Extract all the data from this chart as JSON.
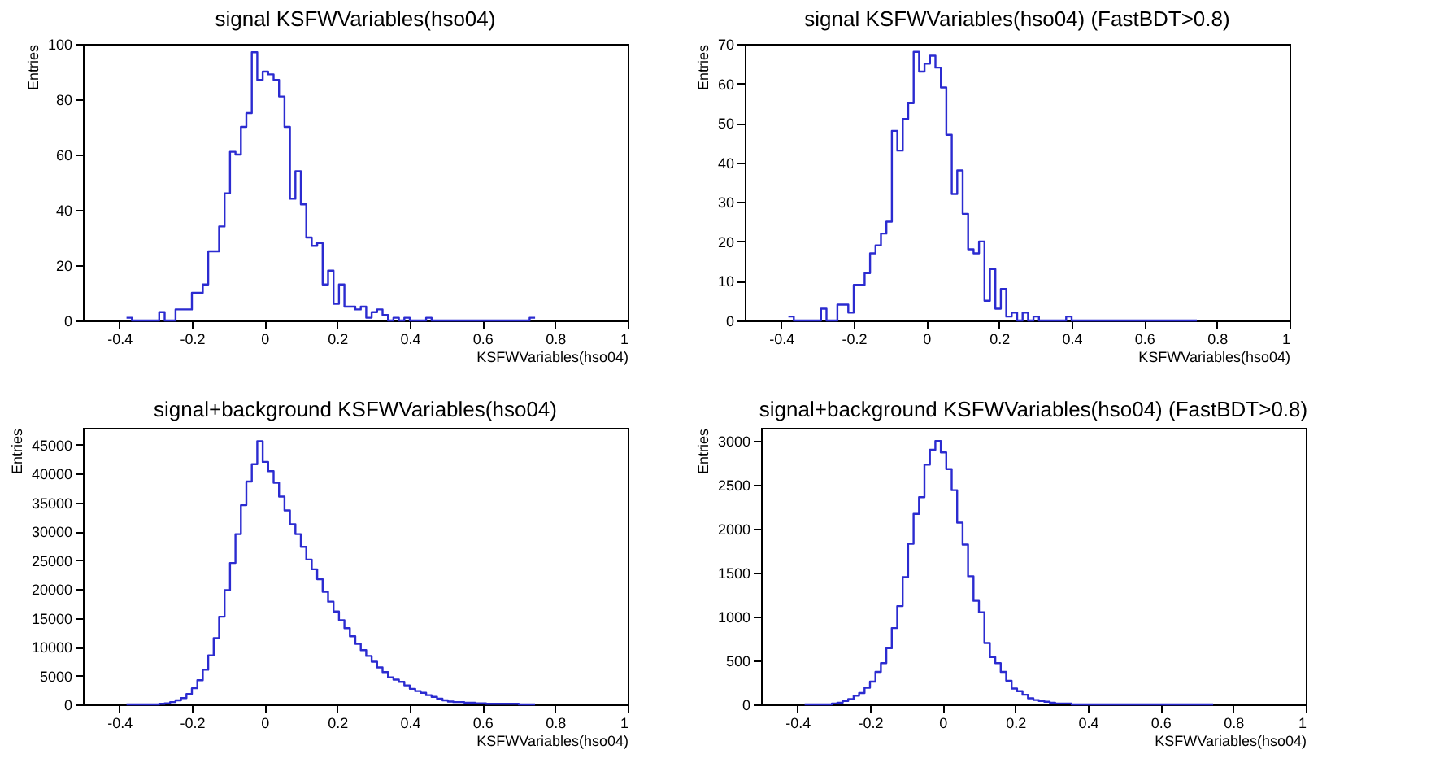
{
  "chart_data": [
    {
      "type": "histogram",
      "title": "signal KSFWVariables(hso04)",
      "xlabel": "KSFWVariables(hso04)",
      "ylabel": "Entries",
      "color": "#2b2bd0",
      "grid": false,
      "legend": false,
      "xlim": [
        -0.5,
        1
      ],
      "xticks": [
        -0.4,
        -0.2,
        0,
        0.2,
        0.4,
        0.6,
        0.8,
        1
      ],
      "ylim": [
        0,
        100
      ],
      "yticks": [
        0,
        20,
        40,
        60,
        80,
        100
      ],
      "bins": [
        -0.38,
        -0.365,
        -0.35,
        -0.335,
        -0.32,
        -0.305,
        -0.29,
        -0.275,
        -0.26,
        -0.245,
        -0.23,
        -0.215,
        -0.2,
        -0.185,
        -0.17,
        -0.155,
        -0.14,
        -0.125,
        -0.11,
        -0.095,
        -0.08,
        -0.065,
        -0.05,
        -0.035,
        -0.02,
        -0.005,
        0.01,
        0.025,
        0.04,
        0.055,
        0.07,
        0.085,
        0.1,
        0.115,
        0.13,
        0.145,
        0.16,
        0.175,
        0.19,
        0.205,
        0.22,
        0.235,
        0.25,
        0.265,
        0.28,
        0.295,
        0.31,
        0.325,
        0.34,
        0.355,
        0.37,
        0.385,
        0.4,
        0.415,
        0.43,
        0.445,
        0.46,
        0.475,
        0.49,
        0.505,
        0.52,
        0.535,
        0.55,
        0.565,
        0.58,
        0.595,
        0.61,
        0.625,
        0.64,
        0.655,
        0.67,
        0.685,
        0.7,
        0.715,
        0.73,
        0.745
      ],
      "values": [
        1,
        0,
        0,
        0,
        0,
        0,
        3,
        0,
        0,
        4,
        4,
        4,
        10,
        10,
        13,
        25,
        25,
        34,
        46,
        61,
        60,
        70,
        75,
        97,
        87,
        90,
        89,
        87,
        81,
        70,
        44,
        54,
        42,
        30,
        27,
        28,
        13,
        18,
        6,
        13,
        5,
        5,
        4,
        5,
        1,
        3,
        4,
        2,
        0,
        1,
        0,
        1,
        0,
        0,
        0,
        1,
        0,
        0,
        0,
        0,
        0,
        0,
        0,
        0,
        0,
        0,
        0,
        0,
        0,
        0,
        0,
        0,
        0,
        0,
        1
      ]
    },
    {
      "type": "histogram",
      "title": "signal KSFWVariables(hso04) (FastBDT>0.8)",
      "xlabel": "KSFWVariables(hso04)",
      "ylabel": "Entries",
      "color": "#2b2bd0",
      "grid": false,
      "legend": false,
      "xlim": [
        -0.5,
        1
      ],
      "xticks": [
        -0.4,
        -0.2,
        0,
        0.2,
        0.4,
        0.6,
        0.8,
        1
      ],
      "ylim": [
        0,
        70
      ],
      "yticks": [
        0,
        10,
        20,
        30,
        40,
        50,
        60,
        70
      ],
      "bins": [
        -0.38,
        -0.365,
        -0.35,
        -0.335,
        -0.32,
        -0.305,
        -0.29,
        -0.275,
        -0.26,
        -0.245,
        -0.23,
        -0.215,
        -0.2,
        -0.185,
        -0.17,
        -0.155,
        -0.14,
        -0.125,
        -0.11,
        -0.095,
        -0.08,
        -0.065,
        -0.05,
        -0.035,
        -0.02,
        -0.005,
        0.01,
        0.025,
        0.04,
        0.055,
        0.07,
        0.085,
        0.1,
        0.115,
        0.13,
        0.145,
        0.16,
        0.175,
        0.19,
        0.205,
        0.22,
        0.235,
        0.25,
        0.265,
        0.28,
        0.295,
        0.31,
        0.325,
        0.34,
        0.355,
        0.37,
        0.385,
        0.4,
        0.415,
        0.43,
        0.445,
        0.46,
        0.475,
        0.49,
        0.505,
        0.52,
        0.535,
        0.55,
        0.565,
        0.58,
        0.595,
        0.61,
        0.625,
        0.64,
        0.655,
        0.67,
        0.685,
        0.7,
        0.715,
        0.73,
        0.745
      ],
      "values": [
        1,
        0,
        0,
        0,
        0,
        0,
        3,
        0,
        0,
        4,
        4,
        2,
        9,
        9,
        12,
        17,
        19,
        22,
        25,
        48,
        43,
        51,
        55,
        68,
        63,
        65,
        67,
        64,
        59,
        47,
        32,
        38,
        27,
        18,
        17,
        20,
        5,
        13,
        3,
        8,
        1,
        2,
        0,
        2,
        0,
        1,
        0,
        0,
        0,
        0,
        0,
        1,
        0,
        0,
        0,
        0,
        0,
        0,
        0,
        0,
        0,
        0,
        0,
        0,
        0,
        0,
        0,
        0,
        0,
        0,
        0,
        0,
        0,
        0,
        0
      ]
    },
    {
      "type": "histogram",
      "title": "signal+background KSFWVariables(hso04)",
      "xlabel": "KSFWVariables(hso04)",
      "ylabel": "Entries",
      "color": "#2b2bd0",
      "grid": false,
      "legend": false,
      "xlim": [
        -0.5,
        1
      ],
      "xticks": [
        -0.4,
        -0.2,
        0,
        0.2,
        0.4,
        0.6,
        0.8,
        1
      ],
      "ylim": [
        0,
        47900
      ],
      "yticks": [
        0,
        5000,
        10000,
        15000,
        20000,
        25000,
        30000,
        35000,
        40000,
        45000
      ],
      "bins": [
        -0.38,
        -0.365,
        -0.35,
        -0.335,
        -0.32,
        -0.305,
        -0.29,
        -0.275,
        -0.26,
        -0.245,
        -0.23,
        -0.215,
        -0.2,
        -0.185,
        -0.17,
        -0.155,
        -0.14,
        -0.125,
        -0.11,
        -0.095,
        -0.08,
        -0.065,
        -0.05,
        -0.035,
        -0.02,
        -0.005,
        0.01,
        0.025,
        0.04,
        0.055,
        0.07,
        0.085,
        0.1,
        0.115,
        0.13,
        0.145,
        0.16,
        0.175,
        0.19,
        0.205,
        0.22,
        0.235,
        0.25,
        0.265,
        0.28,
        0.295,
        0.31,
        0.325,
        0.34,
        0.355,
        0.37,
        0.385,
        0.4,
        0.415,
        0.43,
        0.445,
        0.46,
        0.475,
        0.49,
        0.505,
        0.52,
        0.535,
        0.55,
        0.565,
        0.58,
        0.595,
        0.61,
        0.625,
        0.64,
        0.655,
        0.67,
        0.685,
        0.7,
        0.715,
        0.73,
        0.745
      ],
      "values": [
        0,
        0,
        0,
        0,
        0,
        0,
        100,
        200,
        400,
        700,
        1100,
        1800,
        2800,
        4200,
        6000,
        8500,
        11500,
        15200,
        19800,
        24500,
        29500,
        34500,
        38600,
        41600,
        45600,
        42000,
        40400,
        38400,
        36000,
        33600,
        31200,
        29500,
        27300,
        25100,
        23400,
        21700,
        19500,
        17800,
        16100,
        14600,
        13200,
        11800,
        10500,
        9400,
        8400,
        7400,
        6400,
        5600,
        4700,
        4300,
        3900,
        3300,
        2700,
        2300,
        2000,
        1600,
        1300,
        1000,
        700,
        500,
        400,
        400,
        300,
        300,
        200,
        200,
        100,
        100,
        100,
        100,
        100,
        100,
        0,
        0,
        0
      ]
    },
    {
      "type": "histogram",
      "title": "signal+background KSFWVariables(hso04) (FastBDT>0.8)",
      "xlabel": "KSFWVariables(hso04)",
      "ylabel": "Entries",
      "color": "#2b2bd0",
      "grid": false,
      "legend": false,
      "xlim": [
        -0.5,
        1
      ],
      "xticks": [
        -0.4,
        -0.2,
        0,
        0.2,
        0.4,
        0.6,
        0.8,
        1
      ],
      "ylim": [
        0,
        3150
      ],
      "yticks": [
        0,
        500,
        1000,
        1500,
        2000,
        2500,
        3000
      ],
      "bins": [
        -0.38,
        -0.365,
        -0.35,
        -0.335,
        -0.32,
        -0.305,
        -0.29,
        -0.275,
        -0.26,
        -0.245,
        -0.23,
        -0.215,
        -0.2,
        -0.185,
        -0.17,
        -0.155,
        -0.14,
        -0.125,
        -0.11,
        -0.095,
        -0.08,
        -0.065,
        -0.05,
        -0.035,
        -0.02,
        -0.005,
        0.01,
        0.025,
        0.04,
        0.055,
        0.07,
        0.085,
        0.1,
        0.115,
        0.13,
        0.145,
        0.16,
        0.175,
        0.19,
        0.205,
        0.22,
        0.235,
        0.25,
        0.265,
        0.28,
        0.295,
        0.31,
        0.325,
        0.34,
        0.355,
        0.37,
        0.385,
        0.4,
        0.415,
        0.43,
        0.445,
        0.46,
        0.475,
        0.49,
        0.505,
        0.52,
        0.535,
        0.55,
        0.565,
        0.58,
        0.595,
        0.61,
        0.625,
        0.64,
        0.655,
        0.67,
        0.685,
        0.7,
        0.715,
        0.73,
        0.745
      ],
      "values": [
        0,
        0,
        0,
        0,
        0,
        10,
        20,
        40,
        60,
        100,
        130,
        190,
        260,
        370,
        470,
        640,
        870,
        1120,
        1450,
        1830,
        2170,
        2360,
        2730,
        2900,
        3000,
        2870,
        2680,
        2440,
        2070,
        1820,
        1460,
        1180,
        1050,
        700,
        540,
        470,
        370,
        270,
        180,
        150,
        110,
        70,
        50,
        40,
        30,
        20,
        10,
        10,
        10,
        0,
        0,
        0,
        0,
        0,
        0,
        0,
        0,
        0,
        0,
        0,
        0,
        0,
        0,
        0,
        0,
        0,
        0,
        0,
        0,
        0,
        0,
        0,
        0,
        0,
        0
      ]
    }
  ]
}
